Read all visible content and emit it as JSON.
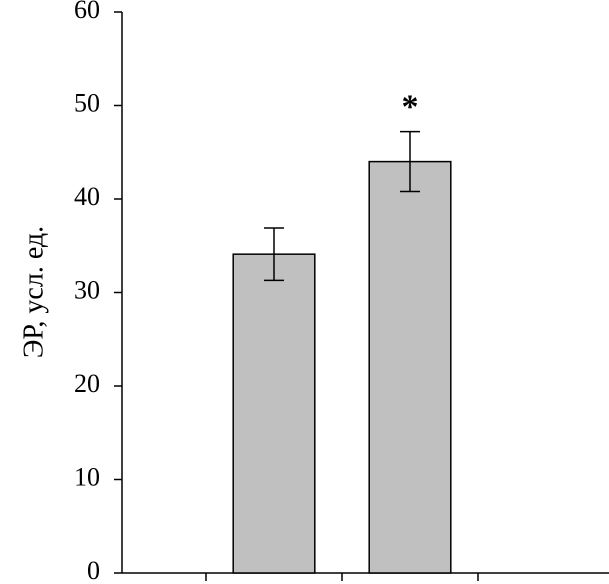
{
  "chart_data": {
    "type": "bar",
    "ylabel": "ЭР, усл. ед.",
    "categories": [
      null,
      null
    ],
    "values": [
      34.1,
      44.0
    ],
    "errors": [
      2.8,
      3.2
    ],
    "color": "#c0c0c0",
    "annotation": "*",
    "ylim": [
      0,
      60
    ],
    "yticks": [
      0,
      10,
      20,
      30,
      40,
      50,
      60
    ],
    "grid": false
  }
}
